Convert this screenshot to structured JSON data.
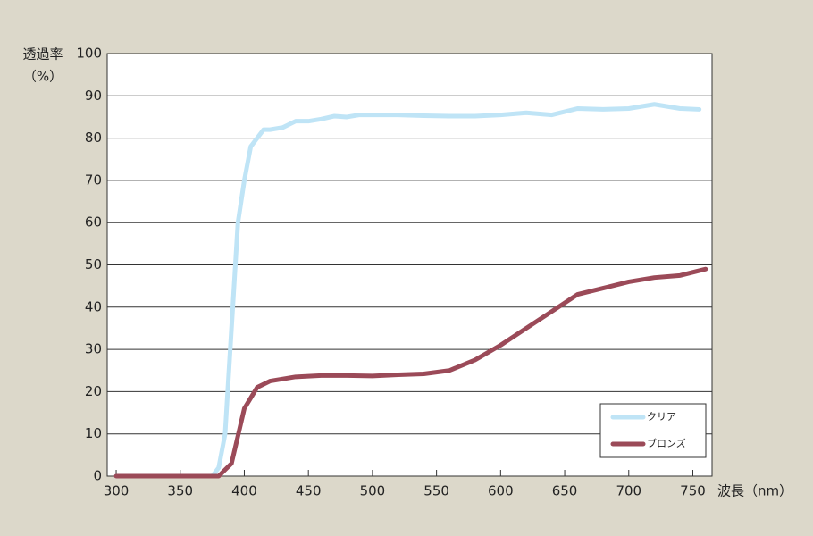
{
  "chart_data": {
    "type": "line",
    "y_label_line1": "透過率",
    "y_label_line2": "（%）",
    "x_label": "波長（nm）",
    "xlim": [
      293,
      765
    ],
    "xticks": [
      300,
      350,
      400,
      450,
      500,
      550,
      600,
      650,
      700,
      750
    ],
    "ylim": [
      0,
      100
    ],
    "yticks": [
      0,
      10,
      20,
      30,
      40,
      50,
      60,
      70,
      80,
      90,
      100
    ],
    "grid": true,
    "legend": "lower right",
    "series": [
      {
        "name": "クリア",
        "color": "#bfe4f6",
        "x": [
          300,
          320,
          340,
          360,
          375,
          380,
          385,
          390,
          395,
          400,
          405,
          410,
          415,
          420,
          430,
          440,
          450,
          460,
          470,
          480,
          490,
          500,
          520,
          540,
          560,
          580,
          600,
          620,
          640,
          660,
          680,
          700,
          720,
          740,
          755
        ],
        "values": [
          0,
          0,
          0,
          0,
          0,
          2,
          10,
          35,
          60,
          70,
          78,
          80,
          82,
          82,
          82.5,
          84,
          84,
          84.5,
          85.2,
          85,
          85.5,
          85.5,
          85.5,
          85.3,
          85.2,
          85.2,
          85.5,
          86,
          85.5,
          87,
          86.8,
          87,
          88,
          87,
          86.8
        ]
      },
      {
        "name": "ブロンズ",
        "color": "#9b4a58",
        "x": [
          300,
          320,
          340,
          360,
          375,
          380,
          390,
          400,
          410,
          420,
          440,
          460,
          480,
          500,
          520,
          540,
          560,
          580,
          600,
          620,
          640,
          660,
          680,
          700,
          720,
          740,
          760
        ],
        "values": [
          0,
          0,
          0,
          0,
          0,
          0,
          3,
          16,
          21,
          22.5,
          23.5,
          23.8,
          23.8,
          23.7,
          24,
          24.2,
          25,
          27.5,
          31,
          35,
          39,
          43,
          44.5,
          46,
          47,
          47.5,
          49
        ]
      }
    ]
  }
}
